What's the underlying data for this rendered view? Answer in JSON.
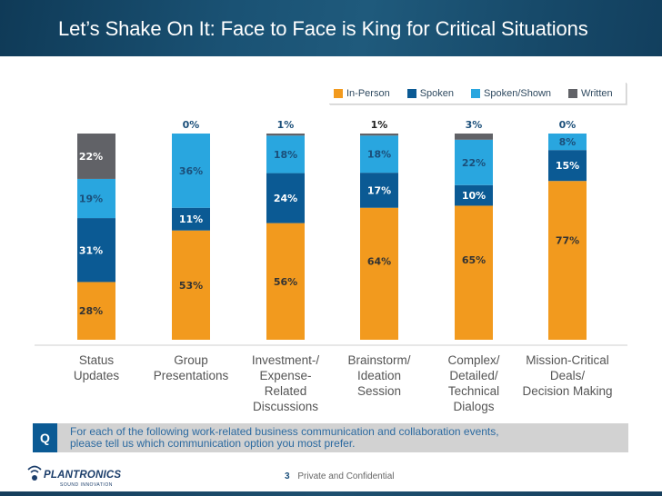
{
  "header": {
    "title": "Let’s Shake On It: Face to Face is King for Critical Situations"
  },
  "colors": {
    "in_person": "#f29a1e",
    "spoken": "#0b5a94",
    "spoken_shown": "#29a6df",
    "written": "#616267",
    "header_bg": "#1a5274",
    "question_bg": "#d2d2d2"
  },
  "chart_data": {
    "type": "bar",
    "stacked": true,
    "title": "",
    "xlabel": "",
    "ylabel": "",
    "ylim": [
      0,
      100
    ],
    "grid": false,
    "legend_position": "top-right",
    "categories": [
      "Status\nUpdates",
      "Group\nPresentations",
      "Investment-/\nExpense-\nRelated\nDiscussions",
      "Brainstorm/\nIdeation\nSession",
      "Complex/\nDetailed/\nTechnical\nDialogs",
      "Mission-Critical\nDeals/\nDecision Making"
    ],
    "series": [
      {
        "name": "In-Person",
        "values": [
          28,
          53,
          56,
          64,
          65,
          77
        ]
      },
      {
        "name": "Spoken",
        "values": [
          31,
          11,
          24,
          17,
          10,
          15
        ]
      },
      {
        "name": "Spoken/Shown",
        "values": [
          19,
          36,
          18,
          18,
          22,
          8
        ]
      },
      {
        "name": "Written",
        "values": [
          22,
          0,
          1,
          1,
          3,
          0
        ]
      }
    ]
  },
  "legend": [
    {
      "label": "In-Person"
    },
    {
      "label": "Spoken"
    },
    {
      "label": "Spoken/Shown"
    },
    {
      "label": "Written"
    }
  ],
  "question": {
    "badge": "Q",
    "text": "For each of the following work-related business communication and collaboration events,\nplease tell us which communication option you most prefer."
  },
  "footer": {
    "logo_text": "PLANTRONICS",
    "logo_tagline": "SOUND INNOVATION",
    "page_number": "3",
    "confidential": "Private and Confidential"
  }
}
